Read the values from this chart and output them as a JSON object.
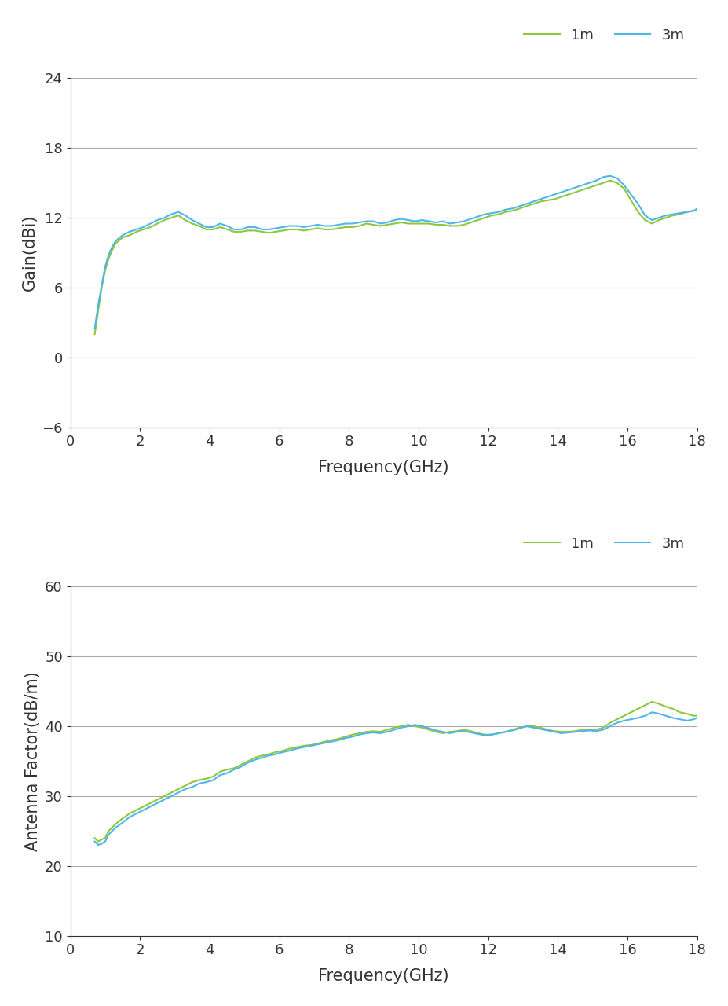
{
  "gain_color_1m": "#8DC63F",
  "gain_color_3m": "#4DB8E8",
  "af_color_1m": "#8DC63F",
  "af_color_3m": "#4DB8E8",
  "legend_color_1m": "#8DC63F",
  "legend_color_3m": "#4DB8E8",
  "gain_ylabel": "Gain(dBi)",
  "af_ylabel": "Antenna Factor(dB/m)",
  "xlabel": "Frequency(GHz)",
  "gain_ylim": [
    -6,
    24
  ],
  "gain_yticks": [
    -6,
    0,
    6,
    12,
    18,
    24
  ],
  "af_ylim": [
    10,
    60
  ],
  "af_yticks": [
    10,
    20,
    30,
    40,
    50,
    60
  ],
  "xlim": [
    0.5,
    18
  ],
  "xticks": [
    0,
    2,
    4,
    6,
    8,
    10,
    12,
    14,
    16,
    18
  ],
  "background_color": "#ffffff",
  "grid_color": "#aaaaaa",
  "line_width": 1.5,
  "legend_fontsize": 13,
  "axis_label_fontsize": 15,
  "tick_fontsize": 13,
  "freq_gain_1m": [
    0.7,
    0.8,
    0.9,
    1.0,
    1.1,
    1.2,
    1.3,
    1.5,
    1.7,
    1.9,
    2.1,
    2.3,
    2.5,
    2.7,
    2.9,
    3.1,
    3.3,
    3.5,
    3.7,
    3.9,
    4.1,
    4.3,
    4.5,
    4.7,
    4.9,
    5.1,
    5.3,
    5.5,
    5.7,
    5.9,
    6.1,
    6.3,
    6.5,
    6.7,
    6.9,
    7.1,
    7.3,
    7.5,
    7.7,
    7.9,
    8.1,
    8.3,
    8.5,
    8.7,
    8.9,
    9.1,
    9.3,
    9.5,
    9.7,
    9.9,
    10.1,
    10.3,
    10.5,
    10.7,
    10.9,
    11.1,
    11.3,
    11.5,
    11.7,
    11.9,
    12.1,
    12.3,
    12.5,
    12.7,
    12.9,
    13.1,
    13.3,
    13.5,
    13.7,
    13.9,
    14.1,
    14.3,
    14.5,
    14.7,
    14.9,
    15.1,
    15.3,
    15.5,
    15.7,
    15.9,
    16.1,
    16.3,
    16.5,
    16.7,
    16.9,
    17.1,
    17.3,
    17.5,
    17.7,
    17.9,
    18.0
  ],
  "gain_1m": [
    2.0,
    4.0,
    6.0,
    7.5,
    8.5,
    9.2,
    9.8,
    10.3,
    10.5,
    10.8,
    11.0,
    11.2,
    11.5,
    11.8,
    12.0,
    12.2,
    11.8,
    11.5,
    11.3,
    11.0,
    11.0,
    11.2,
    11.0,
    10.8,
    10.8,
    10.9,
    10.9,
    10.8,
    10.7,
    10.8,
    10.9,
    11.0,
    11.0,
    10.9,
    11.0,
    11.1,
    11.0,
    11.0,
    11.1,
    11.2,
    11.2,
    11.3,
    11.5,
    11.4,
    11.3,
    11.4,
    11.5,
    11.6,
    11.5,
    11.5,
    11.5,
    11.5,
    11.4,
    11.4,
    11.3,
    11.3,
    11.4,
    11.6,
    11.8,
    12.0,
    12.2,
    12.3,
    12.5,
    12.6,
    12.8,
    13.0,
    13.2,
    13.4,
    13.5,
    13.6,
    13.8,
    14.0,
    14.2,
    14.4,
    14.6,
    14.8,
    15.0,
    15.2,
    15.0,
    14.5,
    13.5,
    12.5,
    11.8,
    11.5,
    11.8,
    12.0,
    12.2,
    12.3,
    12.5,
    12.6,
    12.7
  ],
  "gain_3m": [
    2.5,
    4.5,
    6.2,
    7.8,
    8.8,
    9.5,
    10.0,
    10.5,
    10.8,
    11.0,
    11.2,
    11.5,
    11.8,
    12.0,
    12.3,
    12.5,
    12.2,
    11.8,
    11.5,
    11.2,
    11.2,
    11.5,
    11.3,
    11.0,
    11.0,
    11.2,
    11.2,
    11.0,
    11.0,
    11.1,
    11.2,
    11.3,
    11.3,
    11.2,
    11.3,
    11.4,
    11.3,
    11.3,
    11.4,
    11.5,
    11.5,
    11.6,
    11.7,
    11.7,
    11.5,
    11.6,
    11.8,
    11.9,
    11.8,
    11.7,
    11.8,
    11.7,
    11.6,
    11.7,
    11.5,
    11.6,
    11.7,
    11.9,
    12.1,
    12.3,
    12.4,
    12.5,
    12.7,
    12.8,
    13.0,
    13.2,
    13.4,
    13.6,
    13.8,
    14.0,
    14.2,
    14.4,
    14.6,
    14.8,
    15.0,
    15.2,
    15.5,
    15.6,
    15.4,
    14.8,
    14.0,
    13.2,
    12.2,
    11.8,
    12.0,
    12.2,
    12.3,
    12.4,
    12.5,
    12.6,
    12.8
  ],
  "freq_af_1m": [
    0.7,
    0.8,
    0.9,
    1.0,
    1.1,
    1.2,
    1.3,
    1.5,
    1.7,
    1.9,
    2.1,
    2.3,
    2.5,
    2.7,
    2.9,
    3.1,
    3.3,
    3.5,
    3.7,
    3.9,
    4.1,
    4.3,
    4.5,
    4.7,
    4.9,
    5.1,
    5.3,
    5.5,
    5.7,
    5.9,
    6.1,
    6.3,
    6.5,
    6.7,
    6.9,
    7.1,
    7.3,
    7.5,
    7.7,
    7.9,
    8.1,
    8.3,
    8.5,
    8.7,
    8.9,
    9.1,
    9.3,
    9.5,
    9.7,
    9.9,
    10.1,
    10.3,
    10.5,
    10.7,
    10.9,
    11.1,
    11.3,
    11.5,
    11.7,
    11.9,
    12.1,
    12.3,
    12.5,
    12.7,
    12.9,
    13.1,
    13.3,
    13.5,
    13.7,
    13.9,
    14.1,
    14.3,
    14.5,
    14.7,
    14.9,
    15.1,
    15.3,
    15.5,
    15.7,
    15.9,
    16.1,
    16.3,
    16.5,
    16.7,
    16.9,
    17.1,
    17.3,
    17.5,
    17.7,
    17.9,
    18.0
  ],
  "af_1m": [
    24.0,
    23.5,
    23.8,
    24.0,
    25.0,
    25.5,
    26.0,
    26.8,
    27.5,
    28.0,
    28.5,
    29.0,
    29.5,
    30.0,
    30.5,
    31.0,
    31.5,
    32.0,
    32.3,
    32.5,
    32.8,
    33.5,
    33.8,
    34.0,
    34.5,
    35.0,
    35.5,
    35.8,
    36.0,
    36.3,
    36.5,
    36.8,
    37.0,
    37.2,
    37.3,
    37.5,
    37.8,
    38.0,
    38.2,
    38.5,
    38.8,
    39.0,
    39.2,
    39.3,
    39.2,
    39.5,
    39.8,
    40.0,
    40.2,
    40.0,
    39.8,
    39.5,
    39.2,
    39.0,
    39.2,
    39.3,
    39.5,
    39.3,
    39.0,
    38.8,
    38.8,
    39.0,
    39.2,
    39.5,
    39.8,
    40.0,
    40.0,
    39.8,
    39.5,
    39.3,
    39.2,
    39.2,
    39.3,
    39.5,
    39.5,
    39.5,
    39.8,
    40.5,
    41.0,
    41.5,
    42.0,
    42.5,
    43.0,
    43.5,
    43.2,
    42.8,
    42.5,
    42.0,
    41.8,
    41.5,
    41.5
  ],
  "af_3m": [
    23.5,
    23.0,
    23.2,
    23.5,
    24.5,
    25.0,
    25.5,
    26.2,
    27.0,
    27.5,
    28.0,
    28.5,
    29.0,
    29.5,
    30.0,
    30.5,
    31.0,
    31.3,
    31.8,
    32.0,
    32.3,
    33.0,
    33.3,
    33.8,
    34.2,
    34.8,
    35.2,
    35.5,
    35.8,
    36.0,
    36.3,
    36.5,
    36.8,
    37.0,
    37.2,
    37.4,
    37.6,
    37.8,
    38.0,
    38.3,
    38.5,
    38.8,
    39.0,
    39.1,
    39.0,
    39.2,
    39.5,
    39.8,
    40.0,
    40.2,
    40.0,
    39.7,
    39.4,
    39.2,
    39.0,
    39.2,
    39.3,
    39.1,
    38.9,
    38.7,
    38.8,
    39.0,
    39.2,
    39.4,
    39.7,
    40.0,
    39.8,
    39.6,
    39.4,
    39.2,
    39.0,
    39.1,
    39.2,
    39.3,
    39.4,
    39.3,
    39.5,
    40.0,
    40.5,
    40.8,
    41.0,
    41.2,
    41.5,
    42.0,
    41.8,
    41.5,
    41.2,
    41.0,
    40.8,
    41.0,
    41.2
  ]
}
